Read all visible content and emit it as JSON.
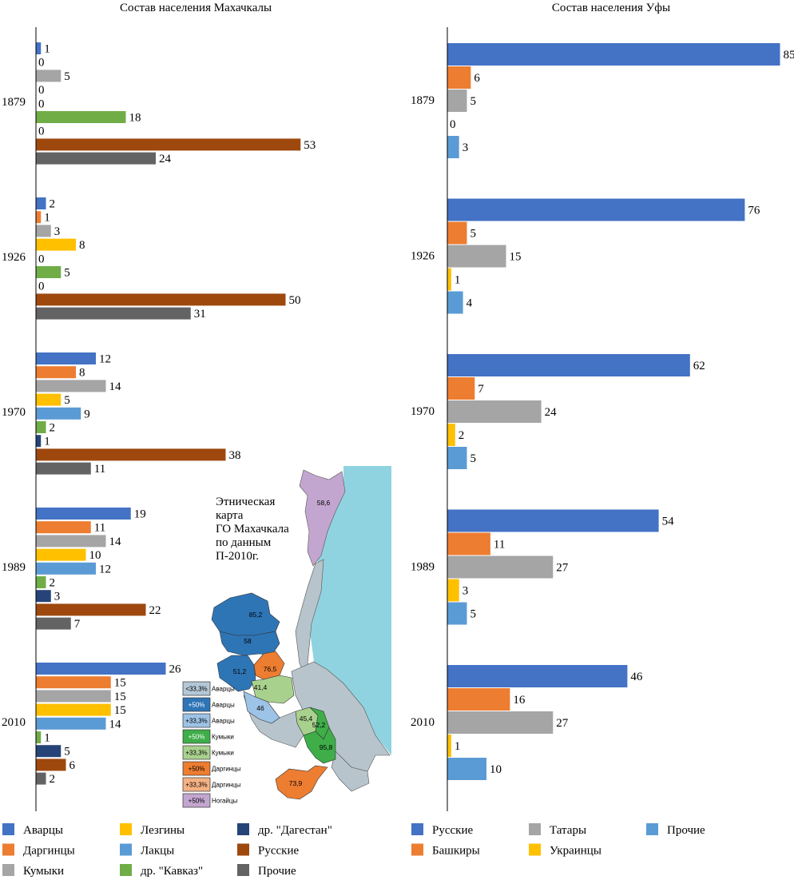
{
  "chart_data": [
    {
      "type": "bar",
      "orientation": "horizontal",
      "title": "Состав населения Махачкалы",
      "categories": [
        "1879",
        "1926",
        "1970",
        "1989",
        "2010"
      ],
      "series": [
        {
          "name": "Аварцы",
          "color": "#4472c4",
          "values": [
            1,
            2,
            12,
            19,
            26
          ]
        },
        {
          "name": "Даргинцы",
          "color": "#ed7d31",
          "values": [
            0,
            1,
            8,
            11,
            15
          ]
        },
        {
          "name": "Кумыки",
          "color": "#a5a5a5",
          "values": [
            5,
            3,
            14,
            14,
            15
          ]
        },
        {
          "name": "Лезгины",
          "color": "#ffc000",
          "values": [
            0,
            8,
            5,
            10,
            15
          ]
        },
        {
          "name": "Лакцы",
          "color": "#5b9bd5",
          "values": [
            0,
            0,
            9,
            12,
            14
          ]
        },
        {
          "name": "др. \"Кавказ\"",
          "color": "#70ad47",
          "values": [
            18,
            5,
            2,
            2,
            1
          ]
        },
        {
          "name": "др. \"Дагестан\"",
          "color": "#264478",
          "values": [
            0,
            0,
            1,
            3,
            5
          ]
        },
        {
          "name": "Русские",
          "color": "#9e480e",
          "values": [
            53,
            50,
            38,
            22,
            6
          ]
        },
        {
          "name": "Прочие",
          "color": "#636363",
          "values": [
            24,
            31,
            11,
            7,
            2
          ]
        }
      ],
      "xlim": [
        0,
        60
      ],
      "grid": false,
      "legend": "bottom"
    },
    {
      "type": "bar",
      "orientation": "horizontal",
      "title": "Состав населения Уфы",
      "categories": [
        "1879",
        "1926",
        "1970",
        "1989",
        "2010"
      ],
      "series": [
        {
          "name": "Русские",
          "color": "#4472c4",
          "values": [
            85,
            76,
            62,
            54,
            46
          ]
        },
        {
          "name": "Башкиры",
          "color": "#ed7d31",
          "values": [
            6,
            5,
            7,
            11,
            16
          ]
        },
        {
          "name": "Татары",
          "color": "#a5a5a5",
          "values": [
            5,
            15,
            24,
            27,
            27
          ]
        },
        {
          "name": "Украинцы",
          "color": "#ffc000",
          "values": [
            0,
            1,
            2,
            3,
            1
          ]
        },
        {
          "name": "Прочие",
          "color": "#5b9bd5",
          "values": [
            3,
            4,
            5,
            5,
            10
          ]
        }
      ],
      "xlim": [
        0,
        90
      ],
      "grid": false,
      "legend": "bottom"
    }
  ],
  "map": {
    "title_lines": [
      "Этническая",
      "карта",
      "ГО Махачкала",
      "по данным",
      "П-2010г."
    ],
    "regions": [
      {
        "label": "58,6",
        "color": "#c3a6cf"
      },
      {
        "label": "85,2",
        "color": "#2e75b6"
      },
      {
        "label": "58",
        "color": "#2e75b6"
      },
      {
        "label": "51,2",
        "color": "#2e75b6"
      },
      {
        "label": "76,5",
        "color": "#ed7d31"
      },
      {
        "label": "41,4",
        "color": "#a9d18e"
      },
      {
        "label": "46",
        "color": "#9dc3e6"
      },
      {
        "label": "45,4",
        "color": "#a9d18e"
      },
      {
        "label": "52,2",
        "color": "#3fae49"
      },
      {
        "label": "95,8",
        "color": "#3fae49"
      },
      {
        "label": "73,9",
        "color": "#ed7d31"
      }
    ],
    "legend": [
      {
        "value": "<33,3%",
        "label": "Аварцы",
        "color": "#b4c7d6"
      },
      {
        "value": "+50%",
        "label": "Аварцы",
        "color": "#2e75b6"
      },
      {
        "value": "+33,3%",
        "label": "Аварцы",
        "color": "#9dc3e6"
      },
      {
        "value": "+50%",
        "label": "Кумыки",
        "color": "#3fae49"
      },
      {
        "value": "+33,3%",
        "label": "Кумыки",
        "color": "#a9d18e"
      },
      {
        "value": "+50%",
        "label": "Даргинцы",
        "color": "#ed7d31"
      },
      {
        "value": "+33,3%",
        "label": "Даргинцы",
        "color": "#f4b183"
      },
      {
        "value": "+50%",
        "label": "Ногайцы",
        "color": "#c3a6cf"
      }
    ],
    "sea_color": "#8fd3e0",
    "land_color": "#b8c4cc"
  }
}
